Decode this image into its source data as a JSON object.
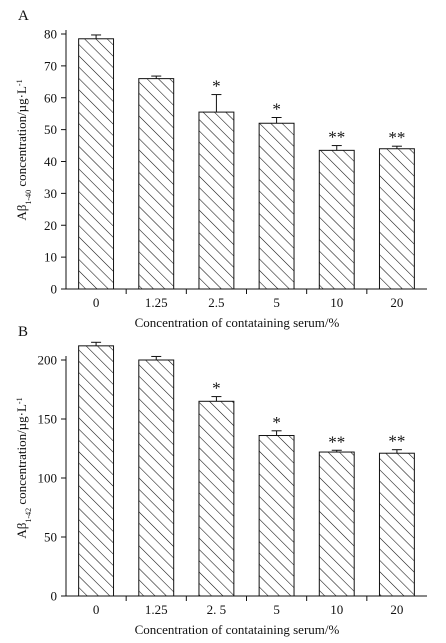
{
  "chart_data": [
    {
      "type": "bar",
      "panel_label": "A",
      "categories": [
        "0",
        "1.25",
        "2.5",
        "5",
        "10",
        "20"
      ],
      "values": [
        78.5,
        66.0,
        55.5,
        52.0,
        43.5,
        44.0
      ],
      "errors": [
        1.2,
        0.8,
        5.5,
        1.8,
        1.5,
        0.8
      ],
      "significance": [
        "",
        "",
        "*",
        "*",
        "**",
        "**"
      ],
      "xlabel": "Concentration of contataining serum/%",
      "ylabel_prefix": "Aβ",
      "ylabel_sub": "1-40",
      "ylabel_main": " concentration/µg·L",
      "ylabel_sup": "-1",
      "ylim": [
        0,
        80
      ],
      "yticks": [
        0,
        10,
        20,
        30,
        40,
        50,
        60,
        70,
        80
      ],
      "grid": false,
      "fill": "diagonal-hatch"
    },
    {
      "type": "bar",
      "panel_label": "B",
      "categories": [
        "0",
        "1.25",
        "2. 5",
        "5",
        "10",
        "20"
      ],
      "values": [
        212,
        200,
        165,
        136,
        122,
        121
      ],
      "errors": [
        3,
        3,
        4,
        4,
        1.5,
        3
      ],
      "significance": [
        "",
        "",
        "*",
        "*",
        "**",
        "**"
      ],
      "xlabel": "Concentration of contataining serum/%",
      "ylabel_prefix": "Aβ",
      "ylabel_sub": "1-42",
      "ylabel_main": " concentration/µg·L",
      "ylabel_sup": "-1",
      "ylim": [
        0,
        200
      ],
      "yticks": [
        0,
        50,
        100,
        150,
        200
      ],
      "grid": false,
      "fill": "diagonal-hatch"
    }
  ],
  "colors": {
    "ink": "#111111",
    "background": "#ffffff"
  }
}
